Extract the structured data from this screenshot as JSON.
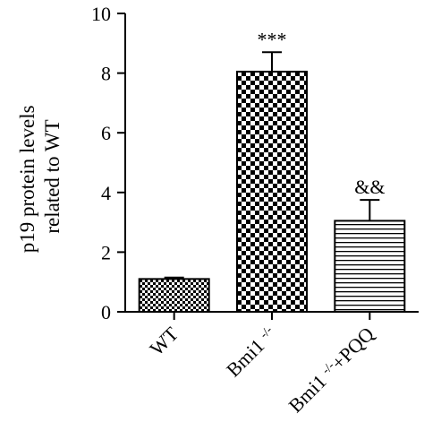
{
  "chart_data": {
    "type": "bar",
    "ylabel": "p19 protein levels related to WT",
    "ylabel_lines": [
      "p19 protein levels",
      "related to WT"
    ],
    "xlabel": "",
    "ylim": [
      0,
      10
    ],
    "yticks": [
      "0",
      "2",
      "4",
      "6",
      "8",
      "10"
    ],
    "ytick_values": [
      0,
      2,
      4,
      6,
      8,
      10
    ],
    "categories": [
      "WT",
      "Bmi1 -/-",
      "Bmi1 -/-+PQQ"
    ],
    "category_parts": [
      {
        "base": "WT",
        "sup": "",
        "tail": ""
      },
      {
        "base": "Bmi1 ",
        "sup": "-/-",
        "tail": ""
      },
      {
        "base": "Bmi1 ",
        "sup": "-/-",
        "tail": "+PQQ"
      }
    ],
    "values": [
      1.1,
      8.05,
      3.05
    ],
    "errors": [
      0.05,
      0.65,
      0.7
    ],
    "annotations": [
      "",
      "***",
      "&&"
    ],
    "bar_patterns": [
      "fine-checker",
      "checker",
      "horizontal-lines"
    ],
    "colors": {
      "ink": "#000000",
      "fill": "#ffffff"
    },
    "grid": false,
    "legend": "none"
  }
}
